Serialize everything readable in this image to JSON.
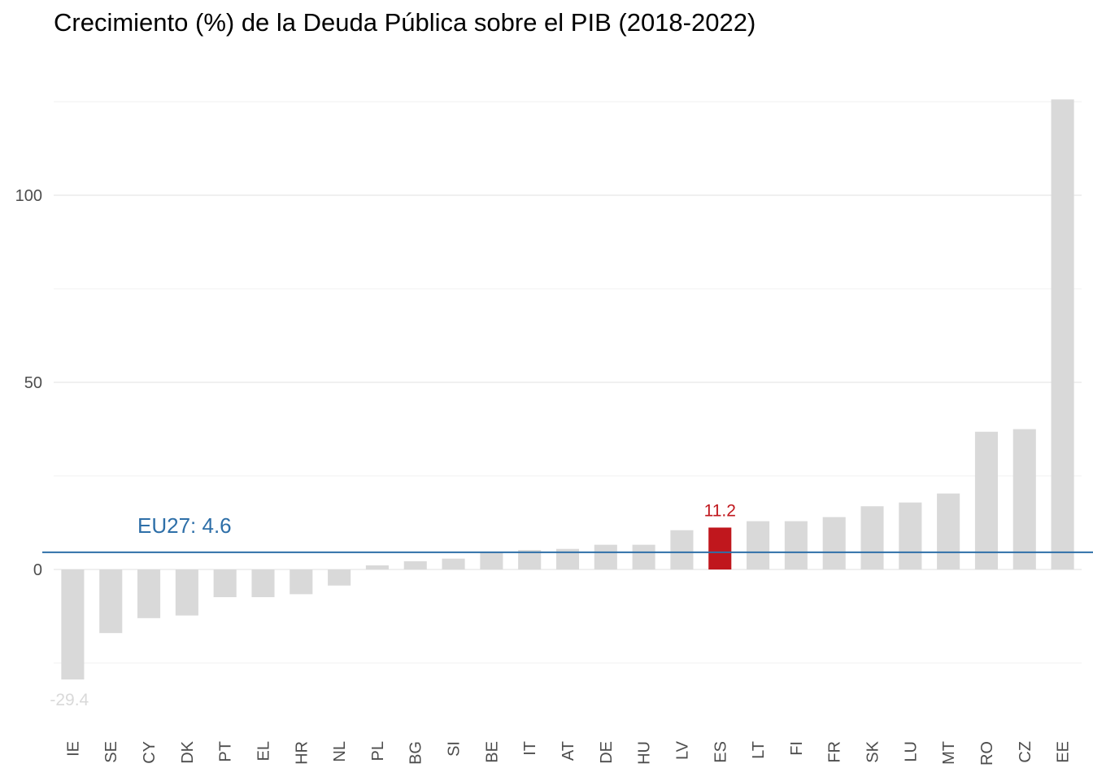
{
  "chart_data": {
    "type": "bar",
    "title": "Crecimiento (%) de la Deuda Pública sobre el PIB (2018-2022)",
    "xlabel": "",
    "ylabel": "",
    "categories": [
      "IE",
      "SE",
      "CY",
      "DK",
      "PT",
      "EL",
      "HR",
      "NL",
      "PL",
      "BG",
      "SI",
      "BE",
      "IT",
      "AT",
      "DE",
      "HU",
      "LV",
      "ES",
      "LT",
      "FI",
      "FR",
      "SK",
      "LU",
      "MT",
      "RO",
      "CZ",
      "EE"
    ],
    "values": [
      -29.4,
      -17.0,
      -13.0,
      -12.3,
      -7.4,
      -7.4,
      -6.6,
      -4.3,
      1.1,
      2.2,
      2.9,
      4.5,
      5.2,
      5.5,
      6.6,
      6.6,
      10.5,
      11.2,
      12.9,
      12.9,
      14.0,
      16.9,
      17.9,
      20.3,
      36.8,
      37.5,
      125.6
    ],
    "highlight": "ES",
    "ylim": [
      -38,
      127
    ],
    "yticks": [
      0,
      50,
      100
    ],
    "ytick_labels": [
      "0",
      "50",
      "100"
    ],
    "grid": true,
    "bar_color": "#d9d9d9",
    "highlight_color": "#c0171d",
    "reference_line": {
      "value": 4.6,
      "label": "EU27: 4.6",
      "color": "#2e6fa8"
    },
    "data_labels": [
      {
        "category": "IE",
        "text": "-29.4",
        "color": "#d9d9d9"
      },
      {
        "category": "ES",
        "text": "11.2",
        "color": "#c0171d"
      }
    ]
  }
}
